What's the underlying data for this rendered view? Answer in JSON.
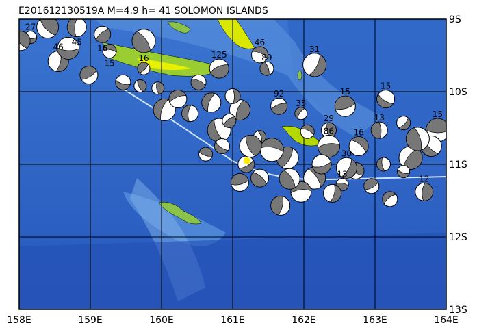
{
  "title": "E201612130519A M=4.9 h= 41 SOLOMON ISLANDS",
  "map": {
    "lon_range": [
      158,
      164
    ],
    "lat_range": [
      -9,
      -13
    ],
    "lon_ticks": [
      {
        "value": 158,
        "label": "158E"
      },
      {
        "value": 159,
        "label": "159E"
      },
      {
        "value": 160,
        "label": "160E"
      },
      {
        "value": 161,
        "label": "161E"
      },
      {
        "value": 162,
        "label": "162E"
      },
      {
        "value": 163,
        "label": "163E"
      },
      {
        "value": 164,
        "label": "164E"
      }
    ],
    "lat_ticks": [
      {
        "value": -9,
        "label": "9S"
      },
      {
        "value": -10,
        "label": "10S"
      },
      {
        "value": -11,
        "label": "11S"
      },
      {
        "value": -12,
        "label": "12S"
      },
      {
        "value": -13,
        "label": "13S"
      }
    ],
    "grid": true,
    "colors": {
      "ocean_deep": "#1e4fb8",
      "ocean_mid": "#3a74d0",
      "ocean_shallow": "#8fc0ee",
      "land_low": "#9acd32",
      "land_high": "#e8f000",
      "compression": "#777777",
      "epicenter": "#ffee00"
    },
    "epicenter": {
      "lon": 161.2,
      "lat": -10.95
    },
    "events": [
      [
        158.16,
        -9.25,
        "27"
      ],
      [
        158.4,
        -9.11,
        ""
      ],
      [
        158.81,
        -9.11,
        "45"
      ],
      [
        159.17,
        -9.21,
        "16"
      ],
      [
        159.27,
        -9.44,
        "15"
      ],
      [
        159.75,
        -9.3,
        "16"
      ],
      [
        158.55,
        -9.58,
        "46"
      ],
      [
        158.98,
        -9.77,
        ""
      ],
      [
        159.46,
        -9.87,
        ""
      ],
      [
        159.7,
        -9.92,
        ""
      ],
      [
        160.04,
        -10.25,
        ""
      ],
      [
        160.81,
        -9.68,
        "125"
      ],
      [
        161.38,
        -9.49,
        "46"
      ],
      [
        161.48,
        -9.68,
        "89"
      ],
      [
        162.15,
        -9.63,
        "31"
      ],
      [
        162.58,
        -10.2,
        "15"
      ],
      [
        163.15,
        -10.1,
        "15"
      ],
      [
        162.35,
        -10.53,
        "29"
      ],
      [
        161.96,
        -10.3,
        "35"
      ],
      [
        162.35,
        -10.75,
        "86"
      ],
      [
        162.77,
        -10.75,
        "16"
      ],
      [
        163.06,
        -10.53,
        "13"
      ],
      [
        163.4,
        -10.43,
        ""
      ],
      [
        163.88,
        -10.53,
        "15"
      ],
      [
        163.79,
        -10.75,
        ""
      ],
      [
        163.69,
        -11.38,
        "12"
      ],
      [
        163.21,
        -11.48,
        ""
      ],
      [
        162.54,
        -11.28,
        "13"
      ],
      [
        162.15,
        -11.19,
        ""
      ],
      [
        161.67,
        -11.57,
        ""
      ],
      [
        161.19,
        -11.0,
        ""
      ],
      [
        160.62,
        -10.86,
        ""
      ],
      [
        160.81,
        -10.53,
        ""
      ],
      [
        161.1,
        -10.25,
        ""
      ],
      [
        160.23,
        -10.1,
        ""
      ],
      [
        160.52,
        -9.87,
        ""
      ],
      [
        161.38,
        -10.62,
        ""
      ],
      [
        161.77,
        -10.91,
        ""
      ],
      [
        162.25,
        -11.0,
        ""
      ],
      [
        162.73,
        -11.09,
        ""
      ],
      [
        163.12,
        -11.0,
        ""
      ],
      [
        163.5,
        -10.91,
        ""
      ],
      [
        161.96,
        -11.38,
        ""
      ],
      [
        161.38,
        -11.19,
        ""
      ],
      [
        161.0,
        -10.06,
        ""
      ],
      [
        159.75,
        -9.68,
        ""
      ],
      [
        158.69,
        -9.4,
        ""
      ],
      [
        158.02,
        -9.3,
        ""
      ],
      [
        160.4,
        -10.3,
        ""
      ],
      [
        160.95,
        -10.4,
        ""
      ],
      [
        161.55,
        -10.8,
        ""
      ],
      [
        161.8,
        -11.2,
        ""
      ],
      [
        162.4,
        -11.4,
        ""
      ],
      [
        162.95,
        -11.3,
        ""
      ],
      [
        163.4,
        -11.1,
        ""
      ],
      [
        161.25,
        -10.75,
        ""
      ],
      [
        160.7,
        -10.15,
        ""
      ],
      [
        161.65,
        -10.2,
        "92"
      ],
      [
        162.05,
        -10.55,
        ""
      ],
      [
        163.6,
        -10.65,
        ""
      ],
      [
        162.6,
        -11.05,
        "30"
      ],
      [
        161.1,
        -11.25,
        ""
      ],
      [
        160.85,
        -10.75,
        ""
      ],
      [
        159.95,
        -9.95,
        ""
      ]
    ]
  }
}
